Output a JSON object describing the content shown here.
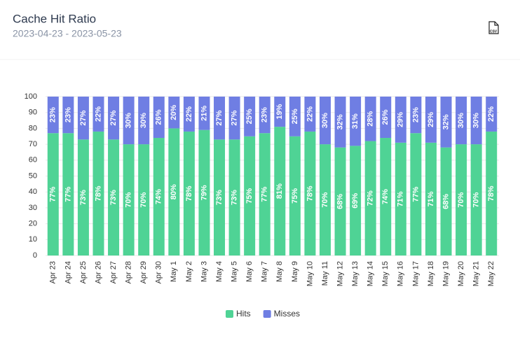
{
  "toolbar": {
    "export": "CSV"
  },
  "chart_data": {
    "type": "stacked_bar",
    "title": "Cache Hit Ratio",
    "subtitle": "2023-04-23 - 2023-05-23",
    "categories": [
      "Apr 23",
      "Apr 24",
      "Apr 25",
      "Apr 26",
      "Apr 27",
      "Apr 28",
      "Apr 29",
      "Apr 30",
      "May 1",
      "May 2",
      "May 3",
      "May 4",
      "May 5",
      "May 6",
      "May 7",
      "May 8",
      "May 9",
      "May 10",
      "May 11",
      "May 12",
      "May 13",
      "May 14",
      "May 15",
      "May 16",
      "May 17",
      "May 18",
      "May 19",
      "May 20",
      "May 21",
      "May 22"
    ],
    "series": [
      {
        "name": "Hits",
        "color": "#4fd395",
        "values": [
          77,
          77,
          73,
          78,
          73,
          70,
          70,
          74,
          80,
          78,
          79,
          73,
          73,
          75,
          77,
          81,
          75,
          78,
          70,
          68,
          69,
          72,
          74,
          71,
          77,
          71,
          68,
          70,
          70,
          78
        ],
        "value_labels": [
          "77%",
          "77%",
          "73%",
          "78%",
          "73%",
          "70%",
          "70%",
          "74%",
          "80%",
          "78%",
          "79%",
          "73%",
          "73%",
          "75%",
          "77%",
          "81%",
          "75%",
          "78%",
          "70%",
          "68%",
          "69%",
          "72%",
          "74%",
          "71%",
          "77%",
          "71%",
          "68%",
          "70%",
          "70%",
          "78%"
        ]
      },
      {
        "name": "Misses",
        "color": "#6f7ee3",
        "values": [
          23,
          23,
          27,
          22,
          27,
          30,
          30,
          26,
          20,
          22,
          21,
          27,
          27,
          25,
          23,
          19,
          25,
          22,
          30,
          32,
          31,
          28,
          26,
          29,
          23,
          29,
          32,
          30,
          30,
          22
        ],
        "value_labels": [
          "23%",
          "23%",
          "27%",
          "22%",
          "27%",
          "30%",
          "30%",
          "26%",
          "20%",
          "22%",
          "21%",
          "27%",
          "27%",
          "25%",
          "23%",
          "19%",
          "25%",
          "22%",
          "30%",
          "32%",
          "31%",
          "28%",
          "26%",
          "29%",
          "23%",
          "29%",
          "32%",
          "30%",
          "30%",
          "22%"
        ]
      }
    ],
    "ylim": [
      0,
      100
    ],
    "yticks": [
      0,
      10,
      20,
      30,
      40,
      50,
      60,
      70,
      80,
      90,
      100
    ],
    "grid": true,
    "legend": "bottom"
  }
}
